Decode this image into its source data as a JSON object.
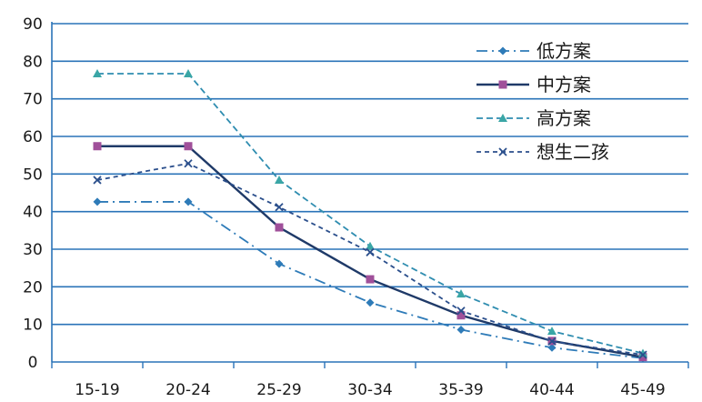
{
  "chart_data": {
    "type": "line",
    "title": "",
    "xlabel": "",
    "ylabel": "",
    "categories": [
      "15-19",
      "20-24",
      "25-29",
      "30-34",
      "35-39",
      "40-44",
      "45-49"
    ],
    "ylim": [
      0,
      90
    ],
    "yticks": [
      "0",
      "10",
      "20",
      "30",
      "40",
      "50",
      "60",
      "70",
      "80",
      "90"
    ],
    "grid": true,
    "legend": "top-right",
    "series": [
      {
        "name": "低方案",
        "values": [
          42.6,
          42.6,
          26.1,
          15.8,
          8.6,
          3.8,
          1.0
        ],
        "color": "#2e7bb8",
        "dash": "dash-dot",
        "marker": "diamond"
      },
      {
        "name": "中方案",
        "values": [
          57.4,
          57.4,
          35.8,
          22.0,
          12.4,
          5.6,
          1.3
        ],
        "color": "#1f3a68",
        "dash": "solid",
        "marker": "square",
        "marker_color": "#a0509a"
      },
      {
        "name": "高方案",
        "values": [
          76.7,
          76.7,
          48.4,
          30.8,
          18.1,
          8.2,
          2.3
        ],
        "color": "#2f8db0",
        "dash": "dashed",
        "marker": "triangle",
        "marker_color": "#3aa6a6"
      },
      {
        "name": "想生二孩",
        "values": [
          48.4,
          52.8,
          41.2,
          29.2,
          13.6,
          5.5,
          1.9
        ],
        "color": "#2b4f8c",
        "dash": "dashed-short",
        "marker": "x"
      }
    ]
  }
}
